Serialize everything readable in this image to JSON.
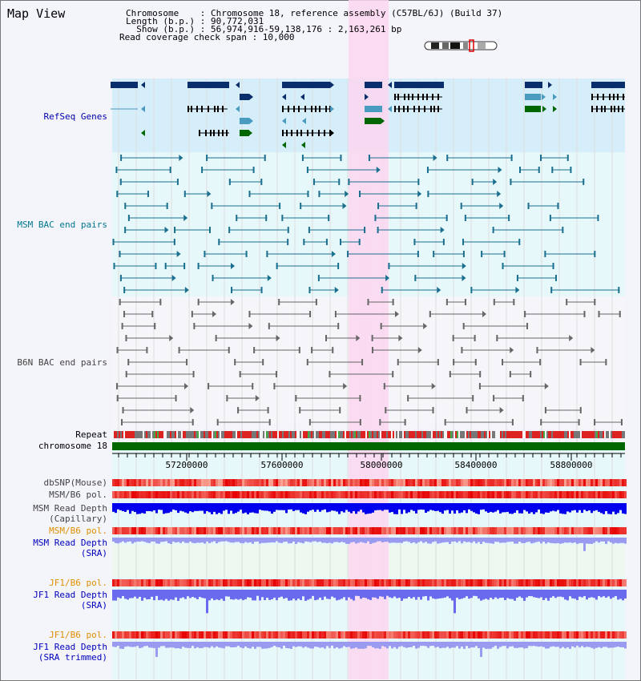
{
  "page": {
    "title": "Map View"
  },
  "info": {
    "l1": "Chromosome    : Chromosome 18, reference assembly (C57BL/6J) (Build 37)",
    "l2": "Length (b.p.) : 90,772,031",
    "l3": "  Show (b.p.) : 56,974,916-59,138,176 : 2,163,261 bp",
    "l4": "Read coverage check span : 10,000"
  },
  "tracks": {
    "refseq": "RefSeq Genes",
    "msm_bac": "MSM BAC end pairs",
    "b6n_bac": "B6N BAC end pairs",
    "repeat": "Repeat",
    "chrom": "chromosome 18",
    "dbsnp": "dbSNP(Mouse)",
    "msm_pol1": "MSM/B6 pol.",
    "msm_depth_cap_1": "MSM Read Depth",
    "msm_depth_cap_2": "(Capillary)",
    "msm_pol2": "MSM/B6 pol.",
    "msm_depth_sra_1": "MSM Read Depth",
    "msm_depth_sra_2": "(SRA)",
    "jf1_pol": "JF1/B6 pol.",
    "jf1_depth_1": "JF1 Read Depth",
    "jf1_depth_2": "(SRA)",
    "jf1_pol2": "JF1/B6 pol.",
    "jf1_trim_1": "JF1 Read Depth",
    "jf1_trim_2": "(SRA trimmed)"
  },
  "ruler": {
    "ticks": [
      "57200000",
      "57600000",
      "58000000",
      "58400000",
      "58800000"
    ]
  },
  "colors": {
    "refseq_bg": "#d6eefa",
    "highlight": "#fbd6f0",
    "gene_dark": "#0a2d6b",
    "gene_mid": "#4a9bc0",
    "gene_green": "#006600",
    "msm_pair": "#1a6f8f",
    "b6n_pair": "#666666"
  }
}
